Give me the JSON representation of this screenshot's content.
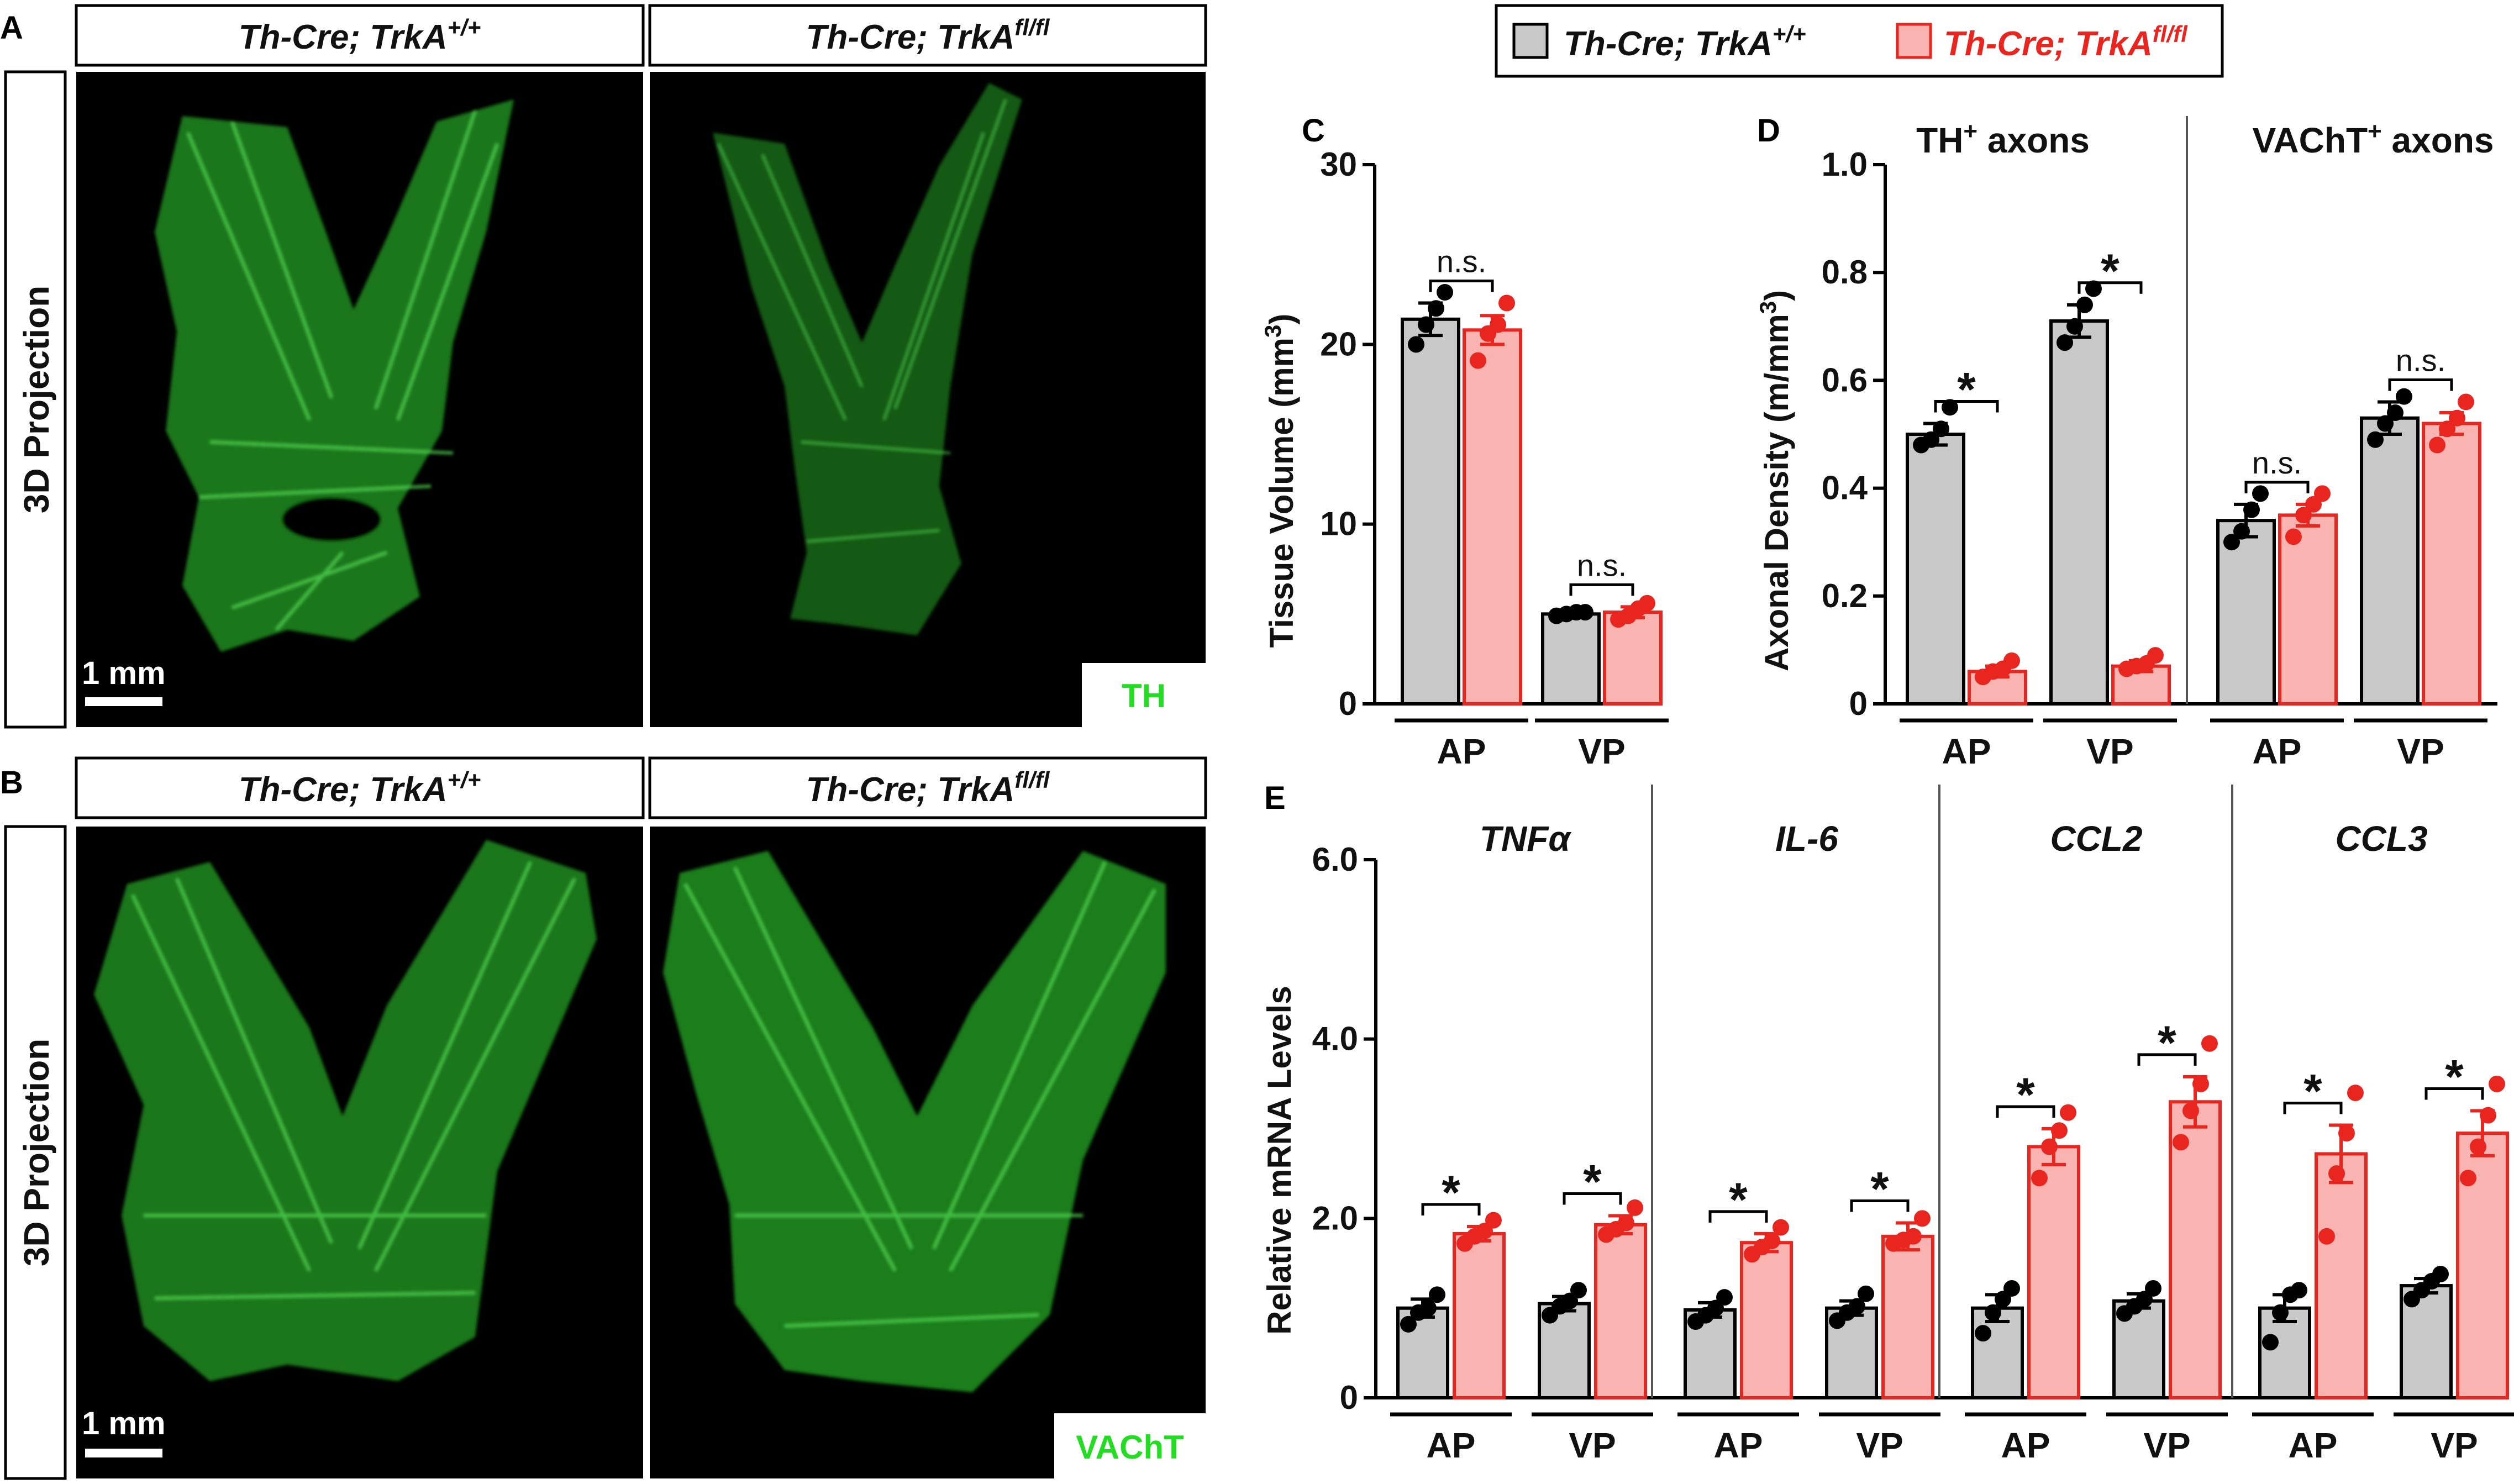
{
  "colors": {
    "control_fill": "#c8c8c8",
    "control_dot": "#000000",
    "ko_fill": "#f9b4b1",
    "ko_stroke": "#e8261f",
    "ko_dot": "#e8261f",
    "ko_text": "#e8261f",
    "micrograph_bg": "#000000",
    "axon_green": "#3cc83c",
    "stain_label": "#22dd22"
  },
  "legend": {
    "control": {
      "base": "Th-Cre; TrkA",
      "sup": "+/+"
    },
    "ko": {
      "base": "Th-Cre; TrkA",
      "sup": "fl/fl"
    }
  },
  "panelA": {
    "letter": "A",
    "side_label": "3D Projection",
    "titles": [
      {
        "base": "Th-Cre; TrkA",
        "sup": "+/+"
      },
      {
        "base": "Th-Cre; TrkA",
        "sup": "fl/fl"
      }
    ],
    "scale_bar": "1 mm",
    "stain": "TH"
  },
  "panelB": {
    "letter": "B",
    "side_label": "3D Projection",
    "titles": [
      {
        "base": "Th-Cre; TrkA",
        "sup": "+/+"
      },
      {
        "base": "Th-Cre; TrkA",
        "sup": "fl/fl"
      }
    ],
    "scale_bar": "1 mm",
    "stain": "VAChT"
  },
  "chart_data": [
    {
      "panel": "C",
      "type": "bar",
      "ylabel": "Tissue Volume (mm3)",
      "ylabel_base": "Tissue Volume (mm",
      "ylabel_sup": "3",
      "ylabel_tail": ")",
      "ylim": [
        0,
        30
      ],
      "yticks": [
        "0",
        "10",
        "20",
        "30"
      ],
      "categories": [
        "AP",
        "VP"
      ],
      "series": [
        {
          "name": "Th-Cre; TrkA+/+",
          "values": [
            21.4,
            5.0
          ],
          "errors": [
            0.9,
            0.2
          ],
          "points": [
            [
              20.0,
              21.1,
              22.0,
              22.9
            ],
            [
              4.9,
              5.0,
              5.1,
              5.1
            ]
          ]
        },
        {
          "name": "Th-Cre; TrkAfl/fl",
          "values": [
            20.8,
            5.1
          ],
          "errors": [
            0.8,
            0.3
          ],
          "points": [
            [
              19.1,
              20.6,
              21.1,
              22.3
            ],
            [
              4.7,
              4.9,
              5.3,
              5.6
            ]
          ]
        }
      ],
      "significance": [
        "n.s.",
        "n.s."
      ]
    },
    {
      "panel": "D",
      "type": "bar",
      "ylabel_base": "Axonal Density (m/mm",
      "ylabel_sup": "3",
      "ylabel_tail": ")",
      "ylim": [
        0,
        1.0
      ],
      "yticks": [
        "0",
        "0.2",
        "0.4",
        "0.6",
        "0.8",
        "1.0"
      ],
      "subpanels": [
        {
          "title_base": "TH",
          "title_sup": "+",
          "title_tail": " axons",
          "categories": [
            "AP",
            "VP"
          ],
          "series": [
            {
              "name": "Th-Cre; TrkA+/+",
              "values": [
                0.5,
                0.71
              ],
              "errors": [
                0.02,
                0.03
              ],
              "points": [
                [
                  0.48,
                  0.49,
                  0.51,
                  0.55
                ],
                [
                  0.67,
                  0.7,
                  0.74,
                  0.77
                ]
              ]
            },
            {
              "name": "Th-Cre; TrkAfl/fl",
              "values": [
                0.06,
                0.07
              ],
              "errors": [
                0.01,
                0.01
              ],
              "points": [
                [
                  0.05,
                  0.06,
                  0.065,
                  0.08
                ],
                [
                  0.065,
                  0.07,
                  0.075,
                  0.09
                ]
              ]
            }
          ],
          "significance": [
            "*",
            "*"
          ]
        },
        {
          "title_base": "VAChT",
          "title_sup": "+",
          "title_tail": " axons",
          "categories": [
            "AP",
            "VP"
          ],
          "series": [
            {
              "name": "Th-Cre; TrkA+/+",
              "values": [
                0.34,
                0.53
              ],
              "errors": [
                0.03,
                0.03
              ],
              "points": [
                [
                  0.3,
                  0.32,
                  0.36,
                  0.39
                ],
                [
                  0.49,
                  0.52,
                  0.54,
                  0.57
                ]
              ]
            },
            {
              "name": "Th-Cre; TrkAfl/fl",
              "values": [
                0.35,
                0.52
              ],
              "errors": [
                0.02,
                0.02
              ],
              "points": [
                [
                  0.31,
                  0.35,
                  0.37,
                  0.39
                ],
                [
                  0.48,
                  0.51,
                  0.53,
                  0.56
                ]
              ]
            }
          ],
          "significance": [
            "n.s.",
            "n.s."
          ]
        }
      ]
    },
    {
      "panel": "E",
      "type": "bar",
      "ylabel": "Relative mRNA Levels",
      "ylim": [
        0,
        6.0
      ],
      "yticks": [
        "0",
        "2.0",
        "4.0",
        "6.0"
      ],
      "subpanels": [
        {
          "title": "TNFα",
          "categories": [
            "AP",
            "VP"
          ],
          "series": [
            {
              "name": "Th-Cre; TrkA+/+",
              "values": [
                1.0,
                1.05
              ],
              "errors": [
                0.1,
                0.08
              ],
              "points": [
                [
                  0.82,
                  0.95,
                  1.0,
                  1.15
                ],
                [
                  0.92,
                  1.02,
                  1.08,
                  1.2
                ]
              ]
            },
            {
              "name": "Th-Cre; TrkAfl/fl",
              "values": [
                1.83,
                1.93
              ],
              "errors": [
                0.08,
                0.1
              ],
              "points": [
                [
                  1.72,
                  1.8,
                  1.86,
                  1.98
                ],
                [
                  1.82,
                  1.88,
                  1.95,
                  2.12
                ]
              ]
            }
          ],
          "significance": [
            "*",
            "*"
          ]
        },
        {
          "title": "IL-6",
          "categories": [
            "AP",
            "VP"
          ],
          "series": [
            {
              "name": "Th-Cre; TrkA+/+",
              "values": [
                0.98,
                1.0
              ],
              "errors": [
                0.08,
                0.08
              ],
              "points": [
                [
                  0.85,
                  0.92,
                  1.0,
                  1.12
                ],
                [
                  0.86,
                  0.95,
                  1.02,
                  1.16
                ]
              ]
            },
            {
              "name": "Th-Cre; TrkAfl/fl",
              "values": [
                1.73,
                1.8
              ],
              "errors": [
                0.1,
                0.15
              ],
              "points": [
                [
                  1.6,
                  1.68,
                  1.75,
                  1.9
                ],
                [
                  1.72,
                  1.76,
                  1.8,
                  2.0
                ]
              ]
            }
          ],
          "significance": [
            "*",
            "*"
          ]
        },
        {
          "title": "CCL2",
          "categories": [
            "AP",
            "VP"
          ],
          "series": [
            {
              "name": "Th-Cre; TrkA+/+",
              "values": [
                1.0,
                1.08
              ],
              "errors": [
                0.15,
                0.08
              ],
              "points": [
                [
                  0.72,
                  0.95,
                  1.1,
                  1.22
                ],
                [
                  0.94,
                  1.02,
                  1.1,
                  1.22
                ]
              ]
            },
            {
              "name": "Th-Cre; TrkAfl/fl",
              "values": [
                2.8,
                3.3
              ],
              "errors": [
                0.2,
                0.28
              ],
              "points": [
                [
                  2.45,
                  2.8,
                  2.98,
                  3.18
                ],
                [
                  2.85,
                  3.2,
                  3.5,
                  3.95
                ]
              ]
            }
          ],
          "significance": [
            "*",
            "*"
          ]
        },
        {
          "title": "CCL3",
          "categories": [
            "AP",
            "VP"
          ],
          "series": [
            {
              "name": "Th-Cre; TrkA+/+",
              "values": [
                1.0,
                1.25
              ],
              "errors": [
                0.15,
                0.08
              ],
              "points": [
                [
                  0.62,
                  0.95,
                  1.15,
                  1.2
                ],
                [
                  1.1,
                  1.2,
                  1.3,
                  1.38
                ]
              ]
            },
            {
              "name": "Th-Cre; TrkAfl/fl",
              "values": [
                2.72,
                2.95
              ],
              "errors": [
                0.32,
                0.25
              ],
              "points": [
                [
                  1.8,
                  2.5,
                  2.95,
                  3.4
                ],
                [
                  2.45,
                  2.8,
                  3.15,
                  3.5
                ]
              ]
            }
          ],
          "significance": [
            "*",
            "*"
          ]
        }
      ]
    }
  ]
}
